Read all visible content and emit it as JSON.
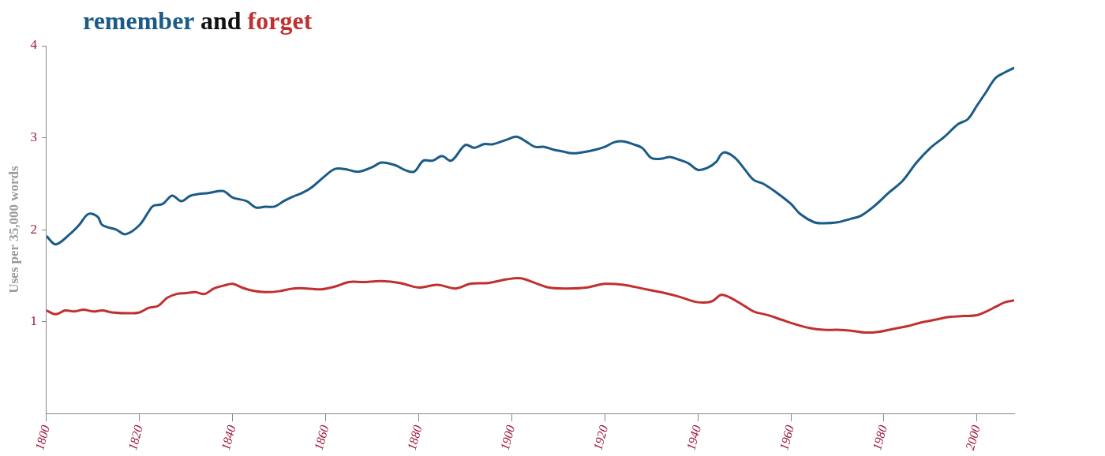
{
  "chart_data": {
    "type": "line",
    "title": "remember and forget",
    "y_label": "Uses per 35,000 words",
    "xlim": [
      1800,
      2008
    ],
    "ylim": [
      0,
      4
    ],
    "xticks": [
      1800,
      1820,
      1840,
      1860,
      1880,
      1900,
      1920,
      1940,
      1960,
      1980,
      2000
    ],
    "yticks": [
      1,
      2,
      3,
      4
    ],
    "grid": false,
    "series": [
      {
        "name": "remember",
        "color": "#1a5b87",
        "x": [
          1800,
          1802,
          1805,
          1807,
          1809,
          1811,
          1812,
          1815,
          1817,
          1820,
          1822,
          1823,
          1825,
          1827,
          1829,
          1831,
          1835,
          1838,
          1840,
          1843,
          1845,
          1847,
          1849,
          1851,
          1853,
          1855,
          1857,
          1860,
          1862,
          1864,
          1867,
          1870,
          1872,
          1875,
          1877,
          1879,
          1881,
          1883,
          1885,
          1887,
          1890,
          1892,
          1894,
          1896,
          1899,
          1901,
          1903,
          1905,
          1907,
          1909,
          1911,
          1913,
          1915,
          1918,
          1920,
          1922,
          1924,
          1926,
          1928,
          1930,
          1932,
          1934,
          1936,
          1938,
          1940,
          1942,
          1944,
          1945,
          1946,
          1948,
          1950,
          1952,
          1954,
          1957,
          1960,
          1962,
          1965,
          1967,
          1970,
          1973,
          1975,
          1978,
          1981,
          1984,
          1987,
          1990,
          1993,
          1996,
          1998,
          2000,
          2002,
          2004,
          2006,
          2008
        ],
        "values": [
          1.93,
          1.84,
          1.95,
          2.05,
          2.17,
          2.14,
          2.05,
          2.0,
          1.95,
          2.05,
          2.2,
          2.26,
          2.28,
          2.37,
          2.31,
          2.37,
          2.4,
          2.42,
          2.35,
          2.31,
          2.24,
          2.25,
          2.25,
          2.31,
          2.36,
          2.4,
          2.46,
          2.59,
          2.66,
          2.66,
          2.63,
          2.68,
          2.73,
          2.7,
          2.65,
          2.63,
          2.75,
          2.75,
          2.8,
          2.75,
          2.92,
          2.89,
          2.93,
          2.93,
          2.98,
          3.01,
          2.96,
          2.9,
          2.9,
          2.87,
          2.85,
          2.83,
          2.84,
          2.87,
          2.9,
          2.95,
          2.96,
          2.93,
          2.89,
          2.78,
          2.77,
          2.79,
          2.76,
          2.72,
          2.65,
          2.67,
          2.74,
          2.82,
          2.84,
          2.78,
          2.66,
          2.54,
          2.5,
          2.4,
          2.28,
          2.17,
          2.08,
          2.07,
          2.08,
          2.12,
          2.15,
          2.26,
          2.4,
          2.53,
          2.73,
          2.89,
          3.01,
          3.15,
          3.2,
          3.35,
          3.5,
          3.65,
          3.71,
          3.76
        ]
      },
      {
        "name": "forget",
        "color": "#c0302e",
        "x": [
          1800,
          1802,
          1804,
          1806,
          1808,
          1810,
          1812,
          1814,
          1818,
          1820,
          1822,
          1824,
          1826,
          1828,
          1830,
          1832,
          1834,
          1836,
          1838,
          1840,
          1842,
          1844,
          1847,
          1850,
          1853,
          1856,
          1859,
          1862,
          1865,
          1868,
          1872,
          1876,
          1880,
          1884,
          1888,
          1891,
          1895,
          1899,
          1902,
          1905,
          1908,
          1912,
          1916,
          1920,
          1924,
          1928,
          1932,
          1936,
          1940,
          1943,
          1945,
          1947,
          1950,
          1952,
          1955,
          1958,
          1961,
          1964,
          1967,
          1970,
          1973,
          1976,
          1979,
          1982,
          1985,
          1988,
          1991,
          1994,
          1997,
          2000,
          2002,
          2004,
          2006,
          2008
        ],
        "values": [
          1.12,
          1.08,
          1.12,
          1.11,
          1.13,
          1.11,
          1.12,
          1.1,
          1.09,
          1.1,
          1.15,
          1.17,
          1.26,
          1.3,
          1.31,
          1.32,
          1.3,
          1.36,
          1.39,
          1.41,
          1.37,
          1.34,
          1.32,
          1.33,
          1.36,
          1.36,
          1.35,
          1.38,
          1.43,
          1.43,
          1.44,
          1.42,
          1.37,
          1.4,
          1.36,
          1.41,
          1.42,
          1.46,
          1.47,
          1.42,
          1.37,
          1.36,
          1.37,
          1.41,
          1.4,
          1.36,
          1.32,
          1.27,
          1.21,
          1.22,
          1.29,
          1.26,
          1.17,
          1.11,
          1.07,
          1.02,
          0.97,
          0.93,
          0.91,
          0.91,
          0.9,
          0.88,
          0.89,
          0.92,
          0.95,
          0.99,
          1.02,
          1.05,
          1.06,
          1.07,
          1.11,
          1.16,
          1.21,
          1.23
        ]
      }
    ]
  }
}
